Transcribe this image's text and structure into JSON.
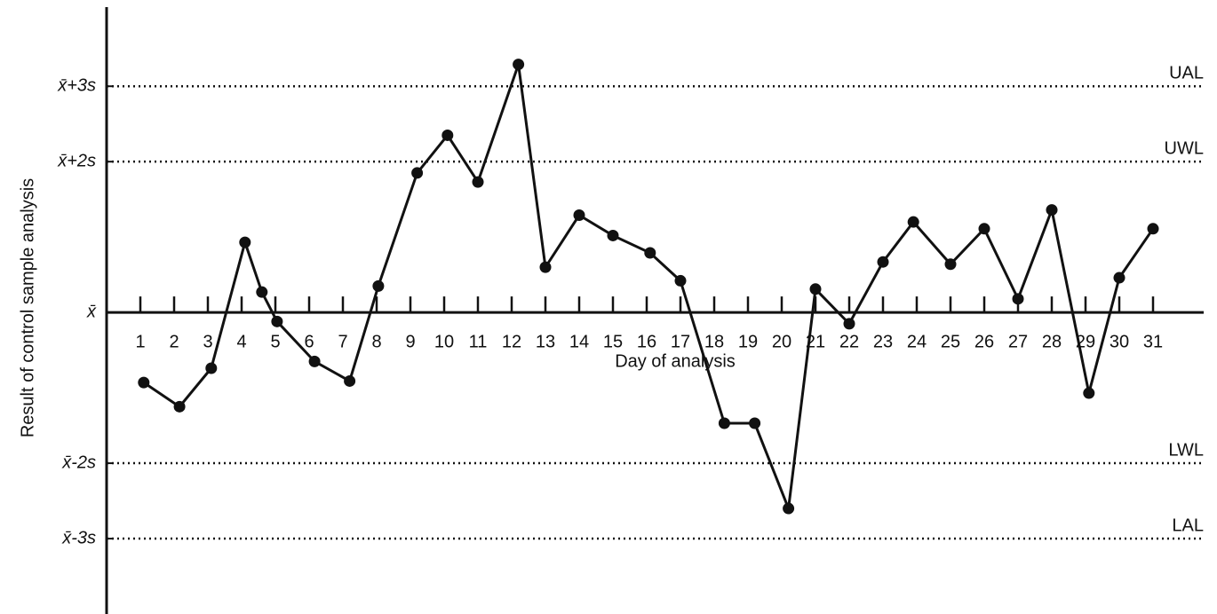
{
  "chart_data": {
    "type": "line",
    "y_label": "Result of control sample analysis",
    "x_label": "Day of analysis",
    "x": [
      1.1,
      2.16,
      3.1,
      4.1,
      4.6,
      5.05,
      6.16,
      7.2,
      8.05,
      9.2,
      10.1,
      11,
      12.2,
      13,
      14,
      15,
      16.1,
      17,
      18.3,
      19.2,
      20.2,
      21,
      22,
      23,
      23.9,
      25,
      26,
      27,
      28,
      29.1,
      30,
      31
    ],
    "series": [
      {
        "color": "#111111",
        "values": [
          -0.93,
          -1.25,
          -0.74,
          0.93,
          0.27,
          -0.12,
          -0.65,
          -0.91,
          0.35,
          1.85,
          2.35,
          1.73,
          3.29,
          0.6,
          1.29,
          1.02,
          0.79,
          0.42,
          -1.47,
          -1.47,
          -2.6,
          0.31,
          -0.15,
          0.67,
          1.2,
          0.64,
          1.11,
          0.18,
          1.36,
          -1.07,
          0.46,
          1.11
        ]
      }
    ],
    "xlim": [
      0,
      32.5
    ],
    "xticks": [
      1,
      2,
      3,
      4,
      5,
      6,
      7,
      8,
      9,
      10,
      11,
      12,
      13,
      14,
      15,
      16,
      17,
      18,
      19,
      20,
      21,
      22,
      23,
      24,
      25,
      26,
      27,
      28,
      29,
      30,
      31
    ],
    "ylim": [
      -4,
      4.05
    ],
    "yticks": [
      {
        "value": 3,
        "label": "x̄+3s"
      },
      {
        "value": 2,
        "label": "x̄+2s"
      },
      {
        "value": 0,
        "label": "x̄"
      },
      {
        "value": -2,
        "label": "x̄-2s"
      },
      {
        "value": -3,
        "label": "x̄-3s"
      }
    ],
    "limit_lines": [
      {
        "value": 3,
        "label": "UAL"
      },
      {
        "value": 2,
        "label": "UWL"
      },
      {
        "value": -2,
        "label": "LWL"
      },
      {
        "value": -3,
        "label": "LAL"
      }
    ],
    "grid": false
  }
}
